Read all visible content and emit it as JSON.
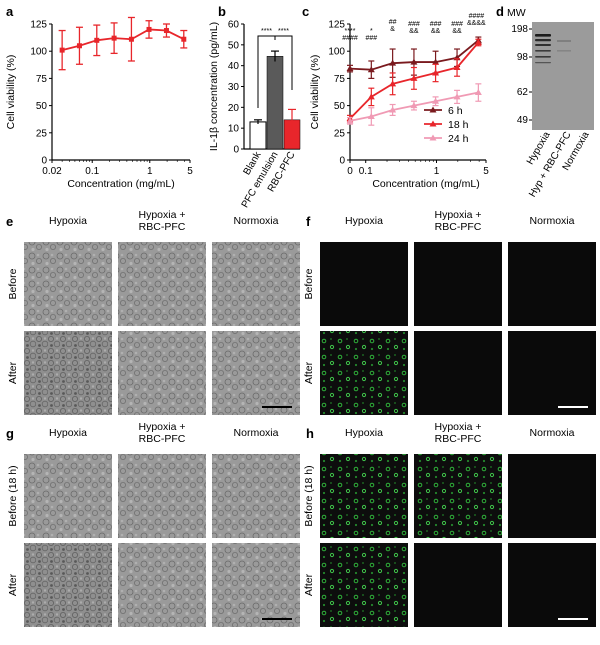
{
  "panels": {
    "a": {
      "label": "a"
    },
    "b": {
      "label": "b"
    },
    "c": {
      "label": "c"
    },
    "d": {
      "label": "d"
    },
    "e": {
      "label": "e"
    },
    "f": {
      "label": "f"
    },
    "g": {
      "label": "g"
    },
    "h": {
      "label": "h"
    }
  },
  "chart_data": [
    {
      "id": "a",
      "type": "line",
      "xlabel": "Concentration (mg/mL)",
      "ylabel": "Cell viability (%)",
      "xscale": "log",
      "xlim": [
        0.02,
        5
      ],
      "ylim": [
        0,
        125
      ],
      "xticks": [
        "0.02",
        "0.1",
        "1",
        "5"
      ],
      "xtick_values": [
        0.02,
        0.1,
        1,
        5
      ],
      "yticks": [
        "0",
        "25",
        "50",
        "75",
        "100",
        "125"
      ],
      "color": "#e8262b",
      "series": [
        {
          "x": [
            0.03,
            0.06,
            0.12,
            0.24,
            0.48,
            0.97,
            1.95,
            3.9
          ],
          "y": [
            101,
            105,
            110,
            112,
            111,
            120,
            119,
            111
          ],
          "err": [
            18,
            17,
            14,
            14,
            20,
            8,
            6,
            8
          ]
        }
      ]
    },
    {
      "id": "b",
      "type": "bar",
      "ylabel": "IL-1β concentration (pg/mL)",
      "ylim": [
        0,
        60
      ],
      "yticks": [
        "0",
        "10",
        "20",
        "30",
        "40",
        "50",
        "60"
      ],
      "categories": [
        "Blank",
        "PFC emulsion",
        "RBC-PFC"
      ],
      "values": [
        13,
        44.5,
        14
      ],
      "err": [
        1,
        2.5,
        5
      ],
      "colors": [
        "#ffffff",
        "#5a5a5a",
        "#e8262b"
      ],
      "significance": [
        "****",
        "****"
      ]
    },
    {
      "id": "c",
      "type": "line",
      "xlabel": "Concentration (mg/mL)",
      "ylabel": "Cell viability (%)",
      "xscale": "log",
      "xlim": [
        0.06,
        5
      ],
      "ylim": [
        0,
        125
      ],
      "xticks": [
        "0",
        "0.1",
        "1",
        "5"
      ],
      "xtick_values": [
        0.06,
        0.1,
        1,
        5
      ],
      "yticks": [
        "0",
        "25",
        "50",
        "75",
        "100",
        "125"
      ],
      "x": [
        0.06,
        0.12,
        0.24,
        0.48,
        0.97,
        1.95,
        3.9
      ],
      "series": [
        {
          "name": "6 h",
          "color": "#7a1a1e",
          "y": [
            84,
            83,
            89,
            90,
            90,
            94,
            110
          ],
          "err": [
            3,
            8,
            13,
            12,
            10,
            8,
            3
          ]
        },
        {
          "name": "18 h",
          "color": "#e8262b",
          "y": [
            38,
            58,
            70,
            75,
            80,
            85,
            108
          ],
          "err": [
            3,
            8,
            10,
            10,
            8,
            8,
            3
          ]
        },
        {
          "name": "24 h",
          "color": "#f09ab4",
          "y": [
            36,
            40,
            46,
            50,
            54,
            58,
            62
          ],
          "err": [
            3,
            8,
            5,
            4,
            4,
            6,
            8
          ]
        }
      ],
      "annotations": [
        {
          "x": 0.06,
          "lines": [
            "****",
            "####"
          ]
        },
        {
          "x": 0.12,
          "lines": [
            "*",
            "###"
          ]
        },
        {
          "x": 0.24,
          "lines": [
            "##",
            "&"
          ]
        },
        {
          "x": 0.48,
          "lines": [
            "###",
            "&&"
          ]
        },
        {
          "x": 0.97,
          "lines": [
            "###",
            "&&"
          ]
        },
        {
          "x": 1.95,
          "lines": [
            "###",
            "&&"
          ]
        },
        {
          "x": 3.9,
          "lines": [
            "####",
            "&&&&"
          ]
        }
      ]
    }
  ],
  "blot": {
    "mw_title": "MW",
    "mw": [
      "198",
      "98",
      "62",
      "49"
    ],
    "lanes": [
      "Hypoxia",
      "Hyp + RBC-PFC",
      "Normoxia"
    ]
  },
  "micro": {
    "e": {
      "cols": [
        "Hypoxia",
        "Hypoxia +\nRBC-PFC",
        "Normoxia"
      ],
      "rows": [
        "Before",
        "After"
      ]
    },
    "f": {
      "cols": [
        "Hypoxia",
        "Hypoxia +\nRBC-PFC",
        "Normoxia"
      ],
      "rows": [
        "Before",
        "After"
      ]
    },
    "g": {
      "cols": [
        "Hypoxia",
        "Hypoxia +\nRBC-PFC",
        "Normoxia"
      ],
      "rows": [
        "Before (18 h)",
        "After"
      ]
    },
    "h": {
      "cols": [
        "Hypoxia",
        "Hypoxia +\nRBC-PFC",
        "Normoxia"
      ],
      "rows": [
        "Before (18 h)",
        "After"
      ]
    }
  }
}
